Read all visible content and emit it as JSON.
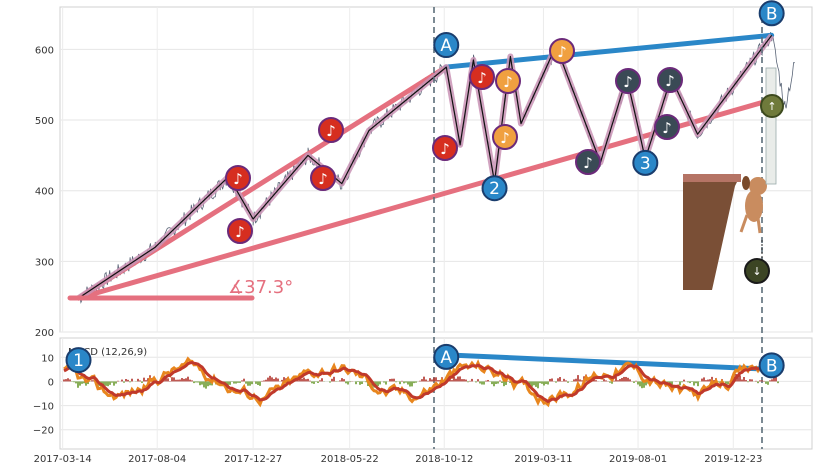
{
  "chart_data": [
    {
      "type": "line",
      "panel": "price",
      "ylim": [
        200,
        660
      ],
      "yticks": [
        "200",
        "300",
        "400",
        "500",
        "600"
      ],
      "grid": true,
      "annotations": {
        "angle_label": "∡37.3°",
        "point_labels": [
          "1",
          "2",
          "3",
          "A",
          "B"
        ],
        "ab_color": "#2a87c8",
        "channel_color": "#e5707f",
        "pattern_color": "#c993b5"
      },
      "anchors": [
        {
          "name": "1",
          "x": "2017-04-07",
          "y": 248
        },
        {
          "name": "A",
          "x": "2018-10-15",
          "y": 575
        },
        {
          "name": "2",
          "x": "2018-12-27",
          "y": 412
        },
        {
          "name": "3",
          "x": "2019-08-12",
          "y": 445
        },
        {
          "name": "B",
          "x": "2020-02-19",
          "y": 620
        }
      ]
    },
    {
      "type": "line",
      "panel": "macd",
      "title": "MACD (12,26,9)",
      "ylim": [
        -28,
        18
      ],
      "yticks": [
        "10",
        "0",
        "−10",
        "−20"
      ],
      "xticks": [
        "2017-03-14",
        "2017-08-04",
        "2017-12-27",
        "2018-05-22",
        "2018-10-12",
        "2019-03-11",
        "2019-08-01",
        "2019-12-23"
      ],
      "series_colors": {
        "macd": "#e8861e",
        "signal": "#c0392b",
        "hist_pos": "#b0322a",
        "hist_neg": "#6a9a2f"
      },
      "divergence": [
        {
          "name": "A",
          "x": "2018-10-15",
          "y": 11
        },
        {
          "name": "B",
          "x": "2020-02-19",
          "y": 5
        }
      ]
    }
  ]
}
